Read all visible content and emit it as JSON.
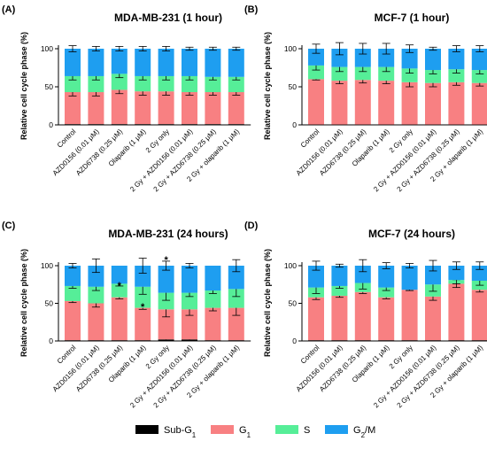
{
  "colors": {
    "Sub-G1": "#000000",
    "G1": "#f88082",
    "S": "#56ee98",
    "G2/M": "#1e9ef0"
  },
  "legend": [
    {
      "key": "Sub-G1",
      "base": "Sub-G",
      "sub": "1"
    },
    {
      "key": "G1",
      "base": "G",
      "sub": "1"
    },
    {
      "key": "S",
      "base": "S",
      "sub": ""
    },
    {
      "key": "G2/M",
      "base": "G",
      "sub": "2",
      "tail": "/M"
    }
  ],
  "chart_data": [
    {
      "type": "bar",
      "stacked": true,
      "letter": "(A)",
      "title": "MDA-MB-231 (1 hour)",
      "ylabel": "Relative cell cycle phase (%)",
      "ylim": [
        0,
        100
      ],
      "yticks": [
        0,
        50,
        100
      ],
      "categories": [
        "Control",
        "AZD0156 (0.01 μM)",
        "AZD6738 (0.25 μM)",
        "Olaparib (1 μM)",
        "2 Gy only",
        "2 Gy + AZD0156 (0.01 μM)",
        "2 Gy + AZD6738 (0.25 μM)",
        "2 Gy + olaparib (1 μM)"
      ],
      "series": [
        {
          "name": "Sub-G1",
          "values": [
            1,
            1,
            1,
            1,
            1,
            1,
            1,
            1
          ],
          "errors": [
            0,
            0,
            0,
            0,
            0,
            0,
            0,
            0
          ]
        },
        {
          "name": "G1",
          "values": [
            42,
            42,
            45,
            43,
            43,
            42,
            42,
            42
          ],
          "errors": [
            5,
            5,
            5,
            5,
            5,
            4,
            4,
            4
          ]
        },
        {
          "name": "S",
          "values": [
            21,
            21,
            21,
            20,
            20,
            21,
            20,
            20
          ],
          "errors": [
            5,
            5,
            5,
            5,
            5,
            5,
            4,
            4
          ]
        },
        {
          "name": "G2/M",
          "values": [
            36,
            36,
            33,
            36,
            36,
            36,
            37,
            37
          ],
          "errors": [
            4,
            3,
            3,
            3,
            3,
            2,
            2,
            2
          ]
        }
      ],
      "annotations": []
    },
    {
      "type": "bar",
      "stacked": true,
      "letter": "(B)",
      "title": "MCF-7 (1 hour)",
      "ylabel": "Relative cell cycle phase (%)",
      "ylim": [
        0,
        100
      ],
      "yticks": [
        0,
        50,
        100
      ],
      "categories": [
        "Control",
        "AZD0156 (0.01 μM)",
        "AZD6738 (0.25 μM)",
        "Olaparib (1 μM)",
        "2 Gy only",
        "2 Gy + AZD0156 (0.01 μM)",
        "2 Gy + AZD6738 (0.25 μM)",
        "2 Gy + olaparib (1 μM)"
      ],
      "series": [
        {
          "name": "Sub-G1",
          "values": [
            0.5,
            0.5,
            0.5,
            0.5,
            0.5,
            0.5,
            0.5,
            0.5
          ],
          "errors": [
            0,
            0,
            0,
            0,
            0,
            0,
            0,
            0
          ]
        },
        {
          "name": "G1",
          "values": [
            59.5,
            57.5,
            58.5,
            57.5,
            55.5,
            54.5,
            55.5,
            54.5
          ],
          "errors": [
            1,
            4,
            4,
            4,
            6,
            5,
            4,
            4
          ]
        },
        {
          "name": "S",
          "values": [
            18,
            18,
            17,
            18,
            18,
            17,
            17,
            17
          ],
          "errors": [
            6,
            6,
            6,
            6,
            6,
            5,
            5,
            5
          ]
        },
        {
          "name": "G2/M",
          "values": [
            22,
            24,
            24,
            24,
            26,
            28,
            27,
            28
          ],
          "errors": [
            6,
            8,
            7,
            7,
            5,
            2,
            4,
            4
          ]
        }
      ],
      "annotations": []
    },
    {
      "type": "bar",
      "stacked": true,
      "letter": "(C)",
      "title": "MDA-MB-231 (24 hours)",
      "ylabel": "Relative cell cycle phase (%)",
      "ylim": [
        0,
        100
      ],
      "yticks": [
        0,
        50,
        100
      ],
      "categories": [
        "Control",
        "AZD0156 (0.01 μM)",
        "AZD6738 (0.25 μM)",
        "Olaparib (1 μM)",
        "2 Gy only",
        "2 Gy + AZD0156 (0.01 μM)",
        "2 Gy + AZD6738 (0.25 μM)",
        "2 Gy + olaparib (1 μM)"
      ],
      "series": [
        {
          "name": "Sub-G1",
          "values": [
            1,
            1,
            1,
            1,
            2,
            2,
            1,
            1
          ],
          "errors": [
            0,
            0,
            0,
            0,
            1,
            1,
            0,
            0
          ]
        },
        {
          "name": "G1",
          "values": [
            52,
            49,
            57,
            43,
            40,
            40,
            43,
            43
          ],
          "errors": [
            2,
            5,
            2,
            2,
            10,
            8,
            4,
            10
          ]
        },
        {
          "name": "S",
          "values": [
            20,
            22,
            18,
            28,
            22,
            22,
            23,
            25
          ],
          "errors": [
            3,
            5,
            3,
            10,
            10,
            5,
            4,
            10
          ]
        },
        {
          "name": "G2/M",
          "values": [
            27,
            28,
            24,
            28,
            36,
            36,
            33,
            31
          ],
          "errors": [
            3,
            9,
            0,
            10,
            6,
            3,
            0,
            8
          ]
        }
      ],
      "annotations": [
        {
          "category": 2,
          "y": 74,
          "text": "*"
        },
        {
          "category": 3,
          "y": 46,
          "text": "*"
        },
        {
          "category": 4,
          "y": 108,
          "text": "*"
        }
      ]
    },
    {
      "type": "bar",
      "stacked": true,
      "letter": "(D)",
      "title": "MCF-7 (24 hours)",
      "ylabel": "Relative cell cycle phase (%)",
      "ylim": [
        0,
        100
      ],
      "yticks": [
        0,
        50,
        100
      ],
      "categories": [
        "Control",
        "AZD0156 (0.01 μM)",
        "AZD6738 (0.25 μM)",
        "Olaparib (1 μM)",
        "2 Gy only",
        "2 Gy + AZD0156 (0.01 μM)",
        "2 Gy + AZD6738 (0.25 μM)",
        "2 Gy + olaparib (1 μM)"
      ],
      "series": [
        {
          "name": "Sub-G1",
          "values": [
            1,
            1,
            1,
            1,
            1,
            1,
            1,
            1
          ],
          "errors": [
            0,
            0,
            0,
            0,
            0,
            0,
            0,
            0
          ]
        },
        {
          "name": "G1",
          "values": [
            57,
            59,
            64,
            57,
            67,
            58,
            75,
            67
          ],
          "errors": [
            3,
            2,
            2,
            2,
            1,
            5,
            5,
            3
          ]
        },
        {
          "name": "S",
          "values": [
            13,
            13,
            12,
            13,
            0,
            16,
            5,
            12
          ],
          "errors": [
            8,
            3,
            8,
            4,
            1,
            9,
            5,
            6
          ]
        },
        {
          "name": "G2/M",
          "values": [
            29,
            27,
            23,
            29,
            32,
            25,
            19,
            20
          ],
          "errors": [
            6,
            2,
            8,
            4,
            3,
            7,
            5,
            5
          ]
        }
      ],
      "annotations": []
    }
  ]
}
